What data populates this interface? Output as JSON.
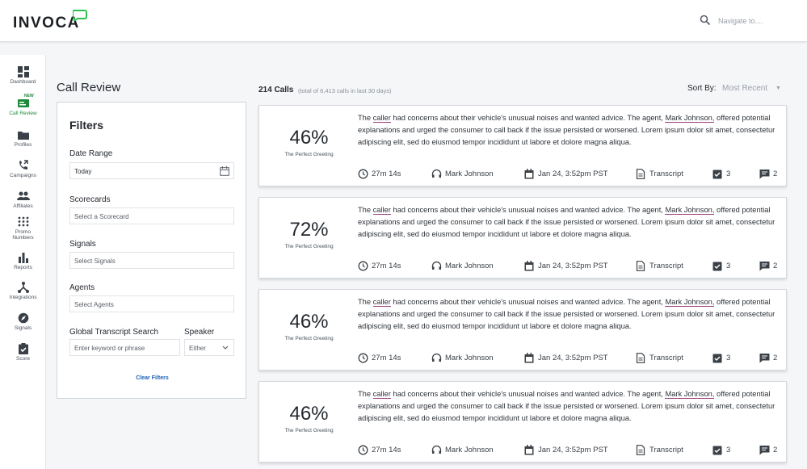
{
  "app": {
    "logo": "INVOCA",
    "search_placeholder": "Navigate to...."
  },
  "sidebar": {
    "items": [
      {
        "label": "Dashboard"
      },
      {
        "label": "Call Review",
        "badge": "NEW",
        "active": true
      },
      {
        "label": "Profiles"
      },
      {
        "label": "Campaigns"
      },
      {
        "label": "Affiliates"
      },
      {
        "label": "Promo Numbers"
      },
      {
        "label": "Reports"
      },
      {
        "label": "Integrations"
      },
      {
        "label": "Signals"
      },
      {
        "label": "Score"
      }
    ]
  },
  "page": {
    "title": "Call Review"
  },
  "filters": {
    "heading": "Filters",
    "date_range": {
      "label": "Date Range",
      "value": "Today"
    },
    "scorecards": {
      "label": "Scorecards",
      "placeholder": "Select a Scorecard"
    },
    "signals": {
      "label": "Signals",
      "placeholder": "Select Signals"
    },
    "agents": {
      "label": "Agents",
      "placeholder": "Select Agents"
    },
    "transcript_search": {
      "label": "Global Transcript Search",
      "placeholder": "Enter keyword or phrase"
    },
    "speaker": {
      "label": "Speaker",
      "value": "Either"
    },
    "clear_label": "Clear Filters"
  },
  "results": {
    "count": "214 Calls",
    "total": "(total of 6,413 calls in last 30 days)",
    "sort_label": "Sort By:",
    "sort_value": "Most Recent"
  },
  "calls": [
    {
      "score": "46%",
      "score_label": "The Perfect Greeting",
      "summary_pre": "The ",
      "summary_caller": "caller",
      "summary_mid": " had concerns about their vehicle's unusual noises and wanted advice. The agent, ",
      "summary_agent": "Mark Johnson,",
      "summary_post": " offered potential explanations and urged the consumer to call back if the issue persisted or worsened. Lorem ipsum dolor sit amet, consectetur adipiscing elit, sed do eiusmod tempor incididunt ut labore et dolore magna aliqua.",
      "duration": "27m 14s",
      "agent": "Mark Johnson",
      "date": "Jan 24, 3:52pm PST",
      "transcript": "Transcript",
      "checks": "3",
      "comments": "2"
    },
    {
      "score": "72%",
      "score_label": "The Perfect Greeting",
      "summary_pre": "The ",
      "summary_caller": "caller",
      "summary_mid": " had concerns about their vehicle's unusual noises and wanted advice. The agent, ",
      "summary_agent": "Mark Johnson,",
      "summary_post": " offered potential explanations and urged the consumer to call back if the issue persisted or worsened. Lorem ipsum dolor sit amet, consectetur adipiscing elit, sed do eiusmod tempor incididunt ut labore et dolore magna aliqua.",
      "duration": "27m 14s",
      "agent": "Mark Johnson",
      "date": "Jan 24, 3:52pm PST",
      "transcript": "Transcript",
      "checks": "3",
      "comments": "2"
    },
    {
      "score": "46%",
      "score_label": "The Perfect Greeting",
      "summary_pre": "The ",
      "summary_caller": "caller",
      "summary_mid": " had concerns about their vehicle's unusual noises and wanted advice. The agent, ",
      "summary_agent": "Mark Johnson,",
      "summary_post": " offered potential explanations and urged the consumer to call back if the issue persisted or worsened. Lorem ipsum dolor sit amet, consectetur adipiscing elit, sed do eiusmod tempor incididunt ut labore et dolore magna aliqua.",
      "duration": "27m 14s",
      "agent": "Mark Johnson",
      "date": "Jan 24, 3:52pm PST",
      "transcript": "Transcript",
      "checks": "3",
      "comments": "2"
    },
    {
      "score": "46%",
      "score_label": "The Perfect Greeting",
      "summary_pre": "The ",
      "summary_caller": "caller",
      "summary_mid": " had concerns about their vehicle's unusual noises and wanted advice. The agent, ",
      "summary_agent": "Mark Johnson,",
      "summary_post": " offered potential explanations and urged the consumer to call back if the issue persisted or worsened. Lorem ipsum dolor sit amet, consectetur adipiscing elit, sed do eiusmod tempor incididunt ut labore et dolore magna aliqua.",
      "duration": "27m 14s",
      "agent": "Mark Johnson",
      "date": "Jan 24, 3:52pm PST",
      "transcript": "Transcript",
      "checks": "3",
      "comments": "2"
    }
  ],
  "colors": {
    "brand_green": "#1f8a3b",
    "link_blue": "#1a5fb4",
    "highlight": "#9b3f7a"
  }
}
